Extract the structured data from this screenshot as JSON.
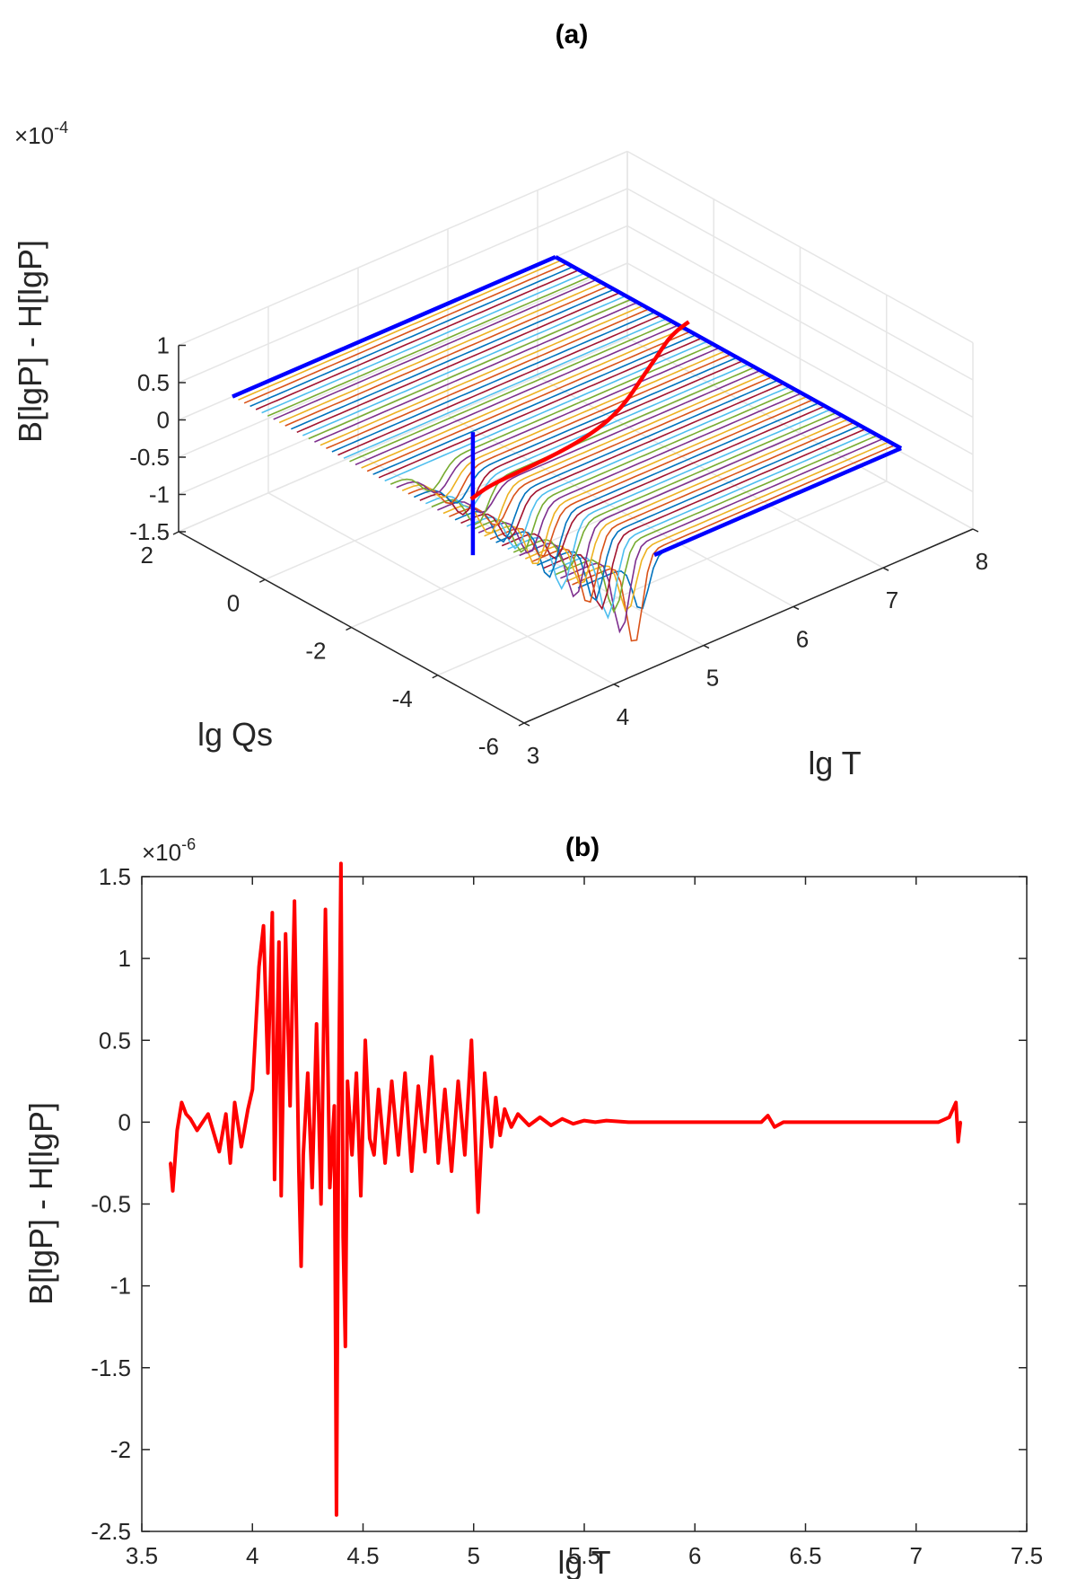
{
  "colors": {
    "axis": "#262626",
    "grid": "#e6e6e6",
    "surface_lines": [
      "#0072bd",
      "#d95319",
      "#edb120",
      "#7e2f8e",
      "#77ac30",
      "#4dbeee",
      "#a2142f"
    ],
    "edge": "#0000ff",
    "ridge": "#ff0000",
    "trace": "#ff0000"
  },
  "chart_data": [
    {
      "type": "surface3d",
      "title": "(a)",
      "xlabel": "lg T",
      "ylabel": "lg Qs",
      "zlabel": "B[lgP] - H[lgP]",
      "z_multiplier": "×10",
      "z_exponent": "-4",
      "xlim": [
        3,
        8
      ],
      "ylim": [
        -6,
        2
      ],
      "zlim": [
        -1.5,
        1
      ],
      "x_ticks": [
        "3",
        "4",
        "5",
        "6",
        "7",
        "8"
      ],
      "y_ticks": [
        "2",
        "0",
        "-2",
        "-4",
        "-6"
      ],
      "z_ticks": [
        "1",
        "0.5",
        "0",
        "-0.5",
        "-1",
        "-1.5"
      ],
      "grid": true,
      "surface": {
        "t_range": [
          3.6,
          7.2
        ],
        "qs_range": [
          -6,
          2
        ],
        "n_lines": 60,
        "dip_region_lg_T": [
          3.6,
          4.4
        ],
        "min_value": -1.35
      },
      "red_ridge_qs": -1.8,
      "red_ridge_steps_lg_T": [
        4.05,
        6.8
      ],
      "blue_spike": {
        "lg_T": 4.45,
        "lg_Qs": -1.8,
        "min": -1.35,
        "max": 0.3
      }
    },
    {
      "type": "line",
      "title": "(b)",
      "xlabel": "lg T",
      "ylabel": "B[lgP] - H[lgP]",
      "y_multiplier": "×10",
      "y_exponent": "-6",
      "xlim": [
        3.5,
        7.5
      ],
      "ylim": [
        -2.5,
        1.5
      ],
      "x_ticks": [
        "3.5",
        "4",
        "4.5",
        "5",
        "5.5",
        "6",
        "6.5",
        "7",
        "7.5"
      ],
      "y_ticks": [
        "1.5",
        "1",
        "0.5",
        "0",
        "-0.5",
        "-1",
        "-1.5",
        "-2",
        "-2.5"
      ],
      "grid": false,
      "series": [
        {
          "name": "B[lgP] - H[lgP]",
          "x": [
            3.63,
            3.64,
            3.66,
            3.68,
            3.7,
            3.72,
            3.75,
            3.8,
            3.85,
            3.88,
            3.9,
            3.92,
            3.95,
            3.98,
            4.0,
            4.03,
            4.05,
            4.07,
            4.09,
            4.1,
            4.12,
            4.13,
            4.15,
            4.17,
            4.19,
            4.21,
            4.22,
            4.23,
            4.25,
            4.27,
            4.29,
            4.31,
            4.33,
            4.35,
            4.37,
            4.38,
            4.39,
            4.4,
            4.41,
            4.42,
            4.43,
            4.45,
            4.47,
            4.49,
            4.51,
            4.53,
            4.55,
            4.57,
            4.6,
            4.63,
            4.66,
            4.69,
            4.72,
            4.75,
            4.78,
            4.81,
            4.84,
            4.87,
            4.9,
            4.93,
            4.96,
            4.99,
            5.02,
            5.05,
            5.08,
            5.1,
            5.12,
            5.14,
            5.17,
            5.2,
            5.25,
            5.3,
            5.35,
            5.4,
            5.45,
            5.5,
            5.55,
            5.6,
            5.7,
            5.8,
            5.9,
            6.0,
            6.1,
            6.2,
            6.3,
            6.33,
            6.36,
            6.4,
            6.5,
            6.6,
            6.7,
            6.8,
            6.9,
            7.0,
            7.1,
            7.15,
            7.18,
            7.19,
            7.2
          ],
          "y": [
            -0.25,
            -0.42,
            -0.05,
            0.12,
            0.05,
            0.02,
            -0.05,
            0.05,
            -0.18,
            0.05,
            -0.25,
            0.12,
            -0.15,
            0.08,
            0.2,
            0.95,
            1.2,
            0.3,
            1.28,
            -0.35,
            1.1,
            -0.45,
            1.15,
            0.1,
            1.35,
            -0.3,
            -0.88,
            -0.2,
            0.3,
            -0.4,
            0.6,
            -0.5,
            1.3,
            -0.4,
            0.1,
            -2.4,
            0.2,
            1.58,
            -0.7,
            -1.37,
            0.25,
            -0.2,
            0.3,
            -0.45,
            0.5,
            -0.1,
            -0.2,
            0.2,
            -0.25,
            0.25,
            -0.2,
            0.3,
            -0.3,
            0.22,
            -0.18,
            0.4,
            -0.25,
            0.2,
            -0.3,
            0.25,
            -0.2,
            0.5,
            -0.55,
            0.3,
            -0.15,
            0.15,
            -0.08,
            0.08,
            -0.03,
            0.05,
            -0.02,
            0.03,
            -0.02,
            0.02,
            -0.01,
            0.01,
            0.0,
            0.01,
            0.0,
            0.0,
            0.0,
            0.0,
            0.0,
            0.0,
            0.0,
            0.04,
            -0.03,
            0.0,
            0.0,
            0.0,
            0.0,
            0.0,
            0.0,
            0.0,
            0.0,
            0.03,
            0.12,
            -0.12,
            0.0
          ]
        }
      ]
    }
  ]
}
